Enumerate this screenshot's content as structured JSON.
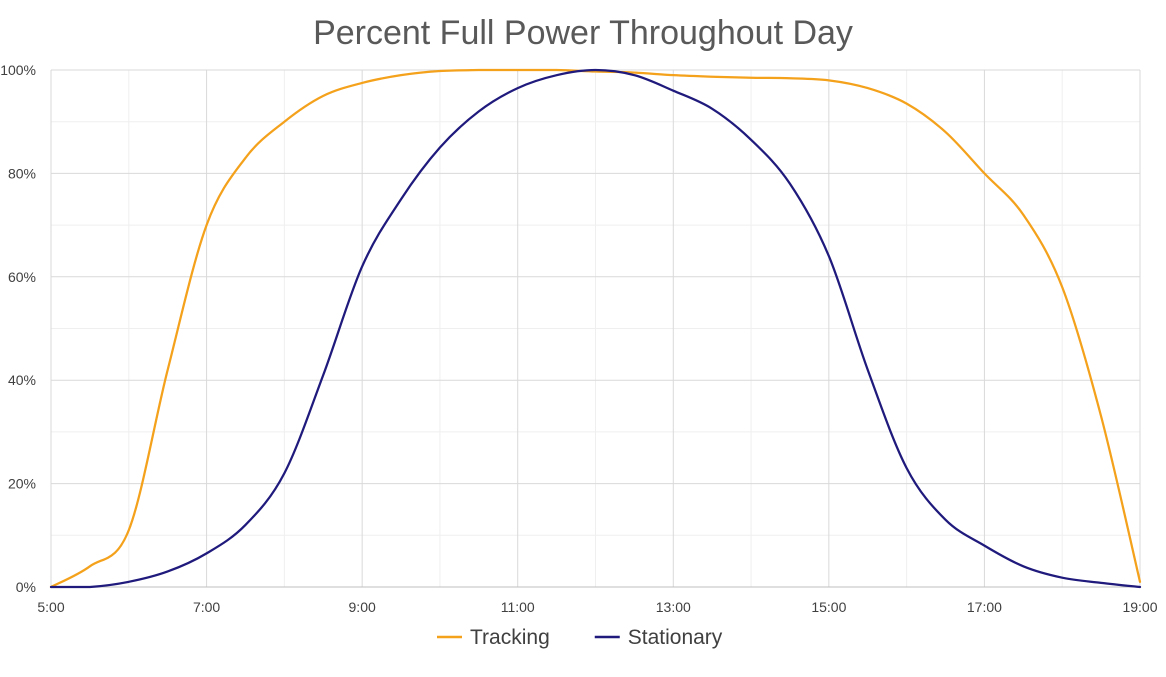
{
  "chart_data": {
    "type": "line",
    "title": "Percent Full Power Throughout Day",
    "xlabel": "",
    "ylabel": "",
    "x_unit": "hour",
    "xlim": [
      5,
      19
    ],
    "ylim": [
      0,
      100
    ],
    "x_ticks": [
      5,
      7,
      9,
      11,
      13,
      15,
      17,
      19
    ],
    "x_tick_labels": [
      "5:00",
      "7:00",
      "9:00",
      "11:00",
      "13:00",
      "15:00",
      "17:00",
      "19:00"
    ],
    "y_ticks": [
      0,
      20,
      40,
      60,
      80,
      100
    ],
    "y_tick_labels": [
      "0%",
      "20%",
      "40%",
      "60%",
      "80%",
      "100%"
    ],
    "major_grid": true,
    "minor_grid": true,
    "legend_position": "bottom",
    "series": [
      {
        "name": "Tracking",
        "color": "#F4A11C",
        "x": [
          5,
          5.5,
          6,
          6.5,
          7,
          7.5,
          8,
          8.5,
          9,
          9.5,
          10,
          10.5,
          11,
          11.5,
          12,
          12.5,
          13,
          13.5,
          14,
          14.5,
          15,
          15.5,
          16,
          16.5,
          17,
          17.5,
          18,
          18.5,
          19
        ],
        "values": [
          0,
          4,
          11,
          42,
          70,
          83,
          90,
          95,
          97.5,
          99,
          99.8,
          100,
          100,
          100,
          99.7,
          99.5,
          99,
          98.7,
          98.5,
          98.4,
          98,
          96.5,
          93.5,
          88,
          80,
          72,
          58,
          33,
          1
        ]
      },
      {
        "name": "Stationary",
        "color": "#1F1A7C",
        "x": [
          5,
          5.5,
          6,
          6.5,
          7,
          7.5,
          8,
          8.5,
          9,
          9.5,
          10,
          10.5,
          11,
          11.5,
          12,
          12.5,
          13,
          13.5,
          14,
          14.5,
          15,
          15.5,
          16,
          16.5,
          17,
          17.5,
          18,
          18.5,
          19
        ],
        "values": [
          0,
          0,
          1,
          3,
          6.5,
          12,
          22,
          41,
          62,
          75,
          85,
          92,
          96.5,
          99,
          100,
          99,
          96,
          92.5,
          86.5,
          78,
          64,
          42,
          23,
          13,
          8,
          4,
          1.8,
          0.8,
          0
        ]
      }
    ]
  }
}
